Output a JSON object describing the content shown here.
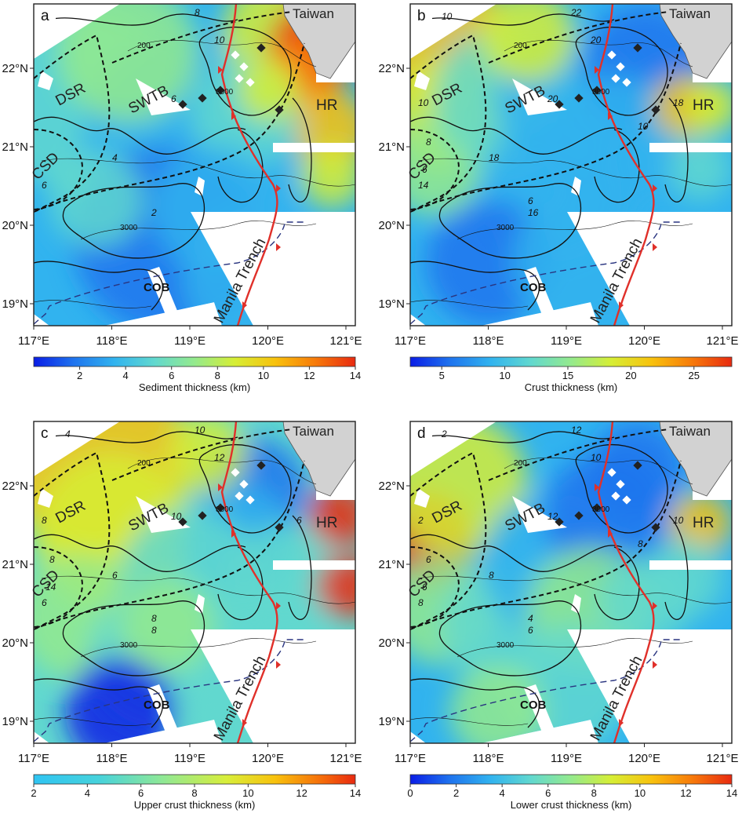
{
  "axes": {
    "lon_labels": [
      "117°E",
      "118°E",
      "119°E",
      "120°E",
      "121°E"
    ],
    "lat_labels": [
      "22°N",
      "21°N",
      "20°N",
      "19°N"
    ]
  },
  "places": {
    "taiwan": "Taiwan",
    "dsr": "DSR",
    "swtb": "SWTB",
    "hr": "HR",
    "csd": "CSD",
    "cob": "COB",
    "trench": "Manila Trench"
  },
  "isobaths": {
    "label": "3000",
    "label_200": "200"
  },
  "colors": {
    "jet": [
      "#0a1de6",
      "#1f74ee",
      "#31b3ef",
      "#61d8cf",
      "#94ea8d",
      "#d6ee35",
      "#f8c20d",
      "#f77b0a",
      "#e82a10"
    ],
    "trench": "#e0302a",
    "land": "#d2d2d2",
    "cob_line": "#2a3580"
  },
  "panels": [
    {
      "letter": "a",
      "colorbar": {
        "label": "Sediment thickness (km)",
        "ticks": [
          "2",
          "4",
          "6",
          "8",
          "10",
          "12",
          "14"
        ],
        "min": 0,
        "max": 14
      },
      "contour_labels": [
        "8",
        "10",
        "6",
        "4",
        "2",
        "6"
      ]
    },
    {
      "letter": "b",
      "colorbar": {
        "label": "Crust thickness (km)",
        "ticks": [
          "5",
          "10",
          "15",
          "20",
          "25"
        ],
        "min": 2.5,
        "max": 28
      },
      "contour_labels": [
        "22",
        "20",
        "20",
        "18",
        "16",
        "14",
        "10",
        "10",
        "8",
        "6",
        "6",
        "18",
        "10"
      ]
    },
    {
      "letter": "c",
      "colorbar": {
        "label": "Upper crust thickness (km)",
        "ticks": [
          "2",
          "4",
          "6",
          "8",
          "10",
          "12",
          "14"
        ],
        "min": 2,
        "max": 14
      },
      "contour_labels": [
        "10",
        "12",
        "10",
        "6",
        "8",
        "6",
        "4",
        "8",
        "8",
        "14",
        "8",
        "6"
      ]
    },
    {
      "letter": "d",
      "colorbar": {
        "label": "Lower crust thickness (km)",
        "ticks": [
          "0",
          "2",
          "4",
          "6",
          "8",
          "10",
          "12",
          "14"
        ],
        "min": 0,
        "max": 14
      },
      "contour_labels": [
        "12",
        "10",
        "12",
        "8",
        "6",
        "8",
        "2",
        "2",
        "6",
        "6",
        "4",
        "10",
        "8"
      ]
    }
  ]
}
